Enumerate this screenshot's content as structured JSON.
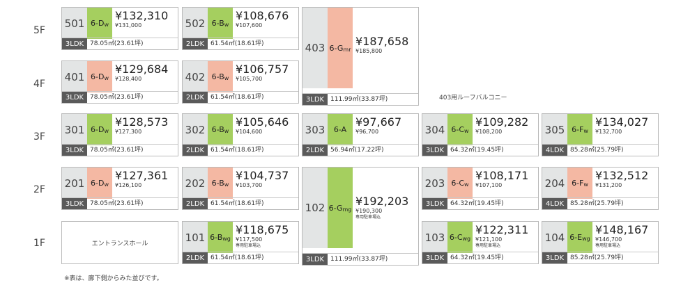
{
  "floors": [
    "5F",
    "4F",
    "3F",
    "2F",
    "1F"
  ],
  "units": [
    {
      "room": "501",
      "type_main": "6-D",
      "type_sub": "w",
      "color": "green",
      "price": "¥132,310",
      "subprice": "¥131,000",
      "note": "",
      "layout": "3LDK",
      "area": "78.05㎡(23.61坪)"
    },
    {
      "room": "502",
      "type_main": "6-B",
      "type_sub": "w",
      "color": "green",
      "price": "¥108,676",
      "subprice": "¥107,600",
      "note": "",
      "layout": "2LDK",
      "area": "61.54㎡(18.61坪)"
    },
    {
      "room": "403",
      "type_main": "6-G",
      "type_sub": "mr",
      "color": "pink",
      "price": "¥187,658",
      "subprice": "¥185,800",
      "note": "",
      "layout": "3LDK",
      "area": "111.99㎡(33.87坪)"
    },
    {
      "room": "401",
      "type_main": "6-D",
      "type_sub": "w",
      "color": "pink",
      "price": "¥129,684",
      "subprice": "¥128,400",
      "note": "",
      "layout": "3LDK",
      "area": "78.05㎡(23.61坪)"
    },
    {
      "room": "402",
      "type_main": "6-B",
      "type_sub": "w",
      "color": "pink",
      "price": "¥106,757",
      "subprice": "¥105,700",
      "note": "",
      "layout": "2LDK",
      "area": "61.54㎡(18.61坪)"
    },
    {
      "room": "301",
      "type_main": "6-D",
      "type_sub": "w",
      "color": "green",
      "price": "¥128,573",
      "subprice": "¥127,300",
      "note": "",
      "layout": "3LDK",
      "area": "78.05㎡(23.61坪)"
    },
    {
      "room": "302",
      "type_main": "6-B",
      "type_sub": "w",
      "color": "green",
      "price": "¥105,646",
      "subprice": "¥104,600",
      "note": "",
      "layout": "2LDK",
      "area": "61.54㎡(18.61坪)"
    },
    {
      "room": "303",
      "type_main": "6-A",
      "type_sub": "",
      "color": "green",
      "price": "¥97,667",
      "subprice": "¥96,700",
      "note": "",
      "layout": "2LDK",
      "area": "56.94㎡(17.22坪)"
    },
    {
      "room": "304",
      "type_main": "6-C",
      "type_sub": "w",
      "color": "green",
      "price": "¥109,282",
      "subprice": "¥108,200",
      "note": "",
      "layout": "3LDK",
      "area": "64.32㎡(19.45坪)"
    },
    {
      "room": "305",
      "type_main": "6-F",
      "type_sub": "w",
      "color": "green",
      "price": "¥134,027",
      "subprice": "¥132,700",
      "note": "",
      "layout": "4LDK",
      "area": "85.28㎡(25.79坪)"
    },
    {
      "room": "201",
      "type_main": "6-D",
      "type_sub": "w",
      "color": "pink",
      "price": "¥127,361",
      "subprice": "¥126,100",
      "note": "",
      "layout": "3LDK",
      "area": "78.05㎡(23.61坪)"
    },
    {
      "room": "202",
      "type_main": "6-B",
      "type_sub": "w",
      "color": "pink",
      "price": "¥104,737",
      "subprice": "¥103,700",
      "note": "",
      "layout": "2LDK",
      "area": "61.54㎡(18.61坪)"
    },
    {
      "room": "102",
      "type_main": "6-G",
      "type_sub": "mg",
      "color": "green",
      "price": "¥192,203",
      "subprice": "¥190,300",
      "note": "専用駐車場込",
      "layout": "3LDK",
      "area": "111.99㎡(33.87坪)"
    },
    {
      "room": "203",
      "type_main": "6-C",
      "type_sub": "w",
      "color": "pink",
      "price": "¥108,171",
      "subprice": "¥107,100",
      "note": "",
      "layout": "3LDK",
      "area": "64.32㎡(19.45坪)"
    },
    {
      "room": "204",
      "type_main": "6-F",
      "type_sub": "w",
      "color": "pink",
      "price": "¥132,512",
      "subprice": "¥131,200",
      "note": "",
      "layout": "4LDK",
      "area": "85.28㎡(25.79坪)"
    },
    {
      "room": "101",
      "type_main": "6-B",
      "type_sub": "wg",
      "color": "green",
      "price": "¥118,675",
      "subprice": "¥117,500",
      "note": "専用駐車場込",
      "layout": "2LDK",
      "area": "61.54㎡(18.61坪)"
    },
    {
      "room": "103",
      "type_main": "6-C",
      "type_sub": "wg",
      "color": "green",
      "price": "¥122,311",
      "subprice": "¥121,100",
      "note": "専用駐車場込",
      "layout": "3LDK",
      "area": "64.32㎡(19.45坪)"
    },
    {
      "room": "104",
      "type_main": "6-E",
      "type_sub": "wg",
      "color": "green",
      "price": "¥148,167",
      "subprice": "¥146,700",
      "note": "専用駐車場込",
      "layout": "3LDK",
      "area": "85.28㎡(25.79坪)"
    }
  ],
  "entrance_label": "エントランスホール",
  "roof_balcony_label": "403用ルーフバルコニー",
  "footnote": "※表は、廊下側からみた並びです。",
  "colors": {
    "green": "#a5cf5f",
    "pink": "#f4b8a3",
    "room_bg": "#e3e5e5",
    "layout_bg": "#5a5a5a"
  }
}
